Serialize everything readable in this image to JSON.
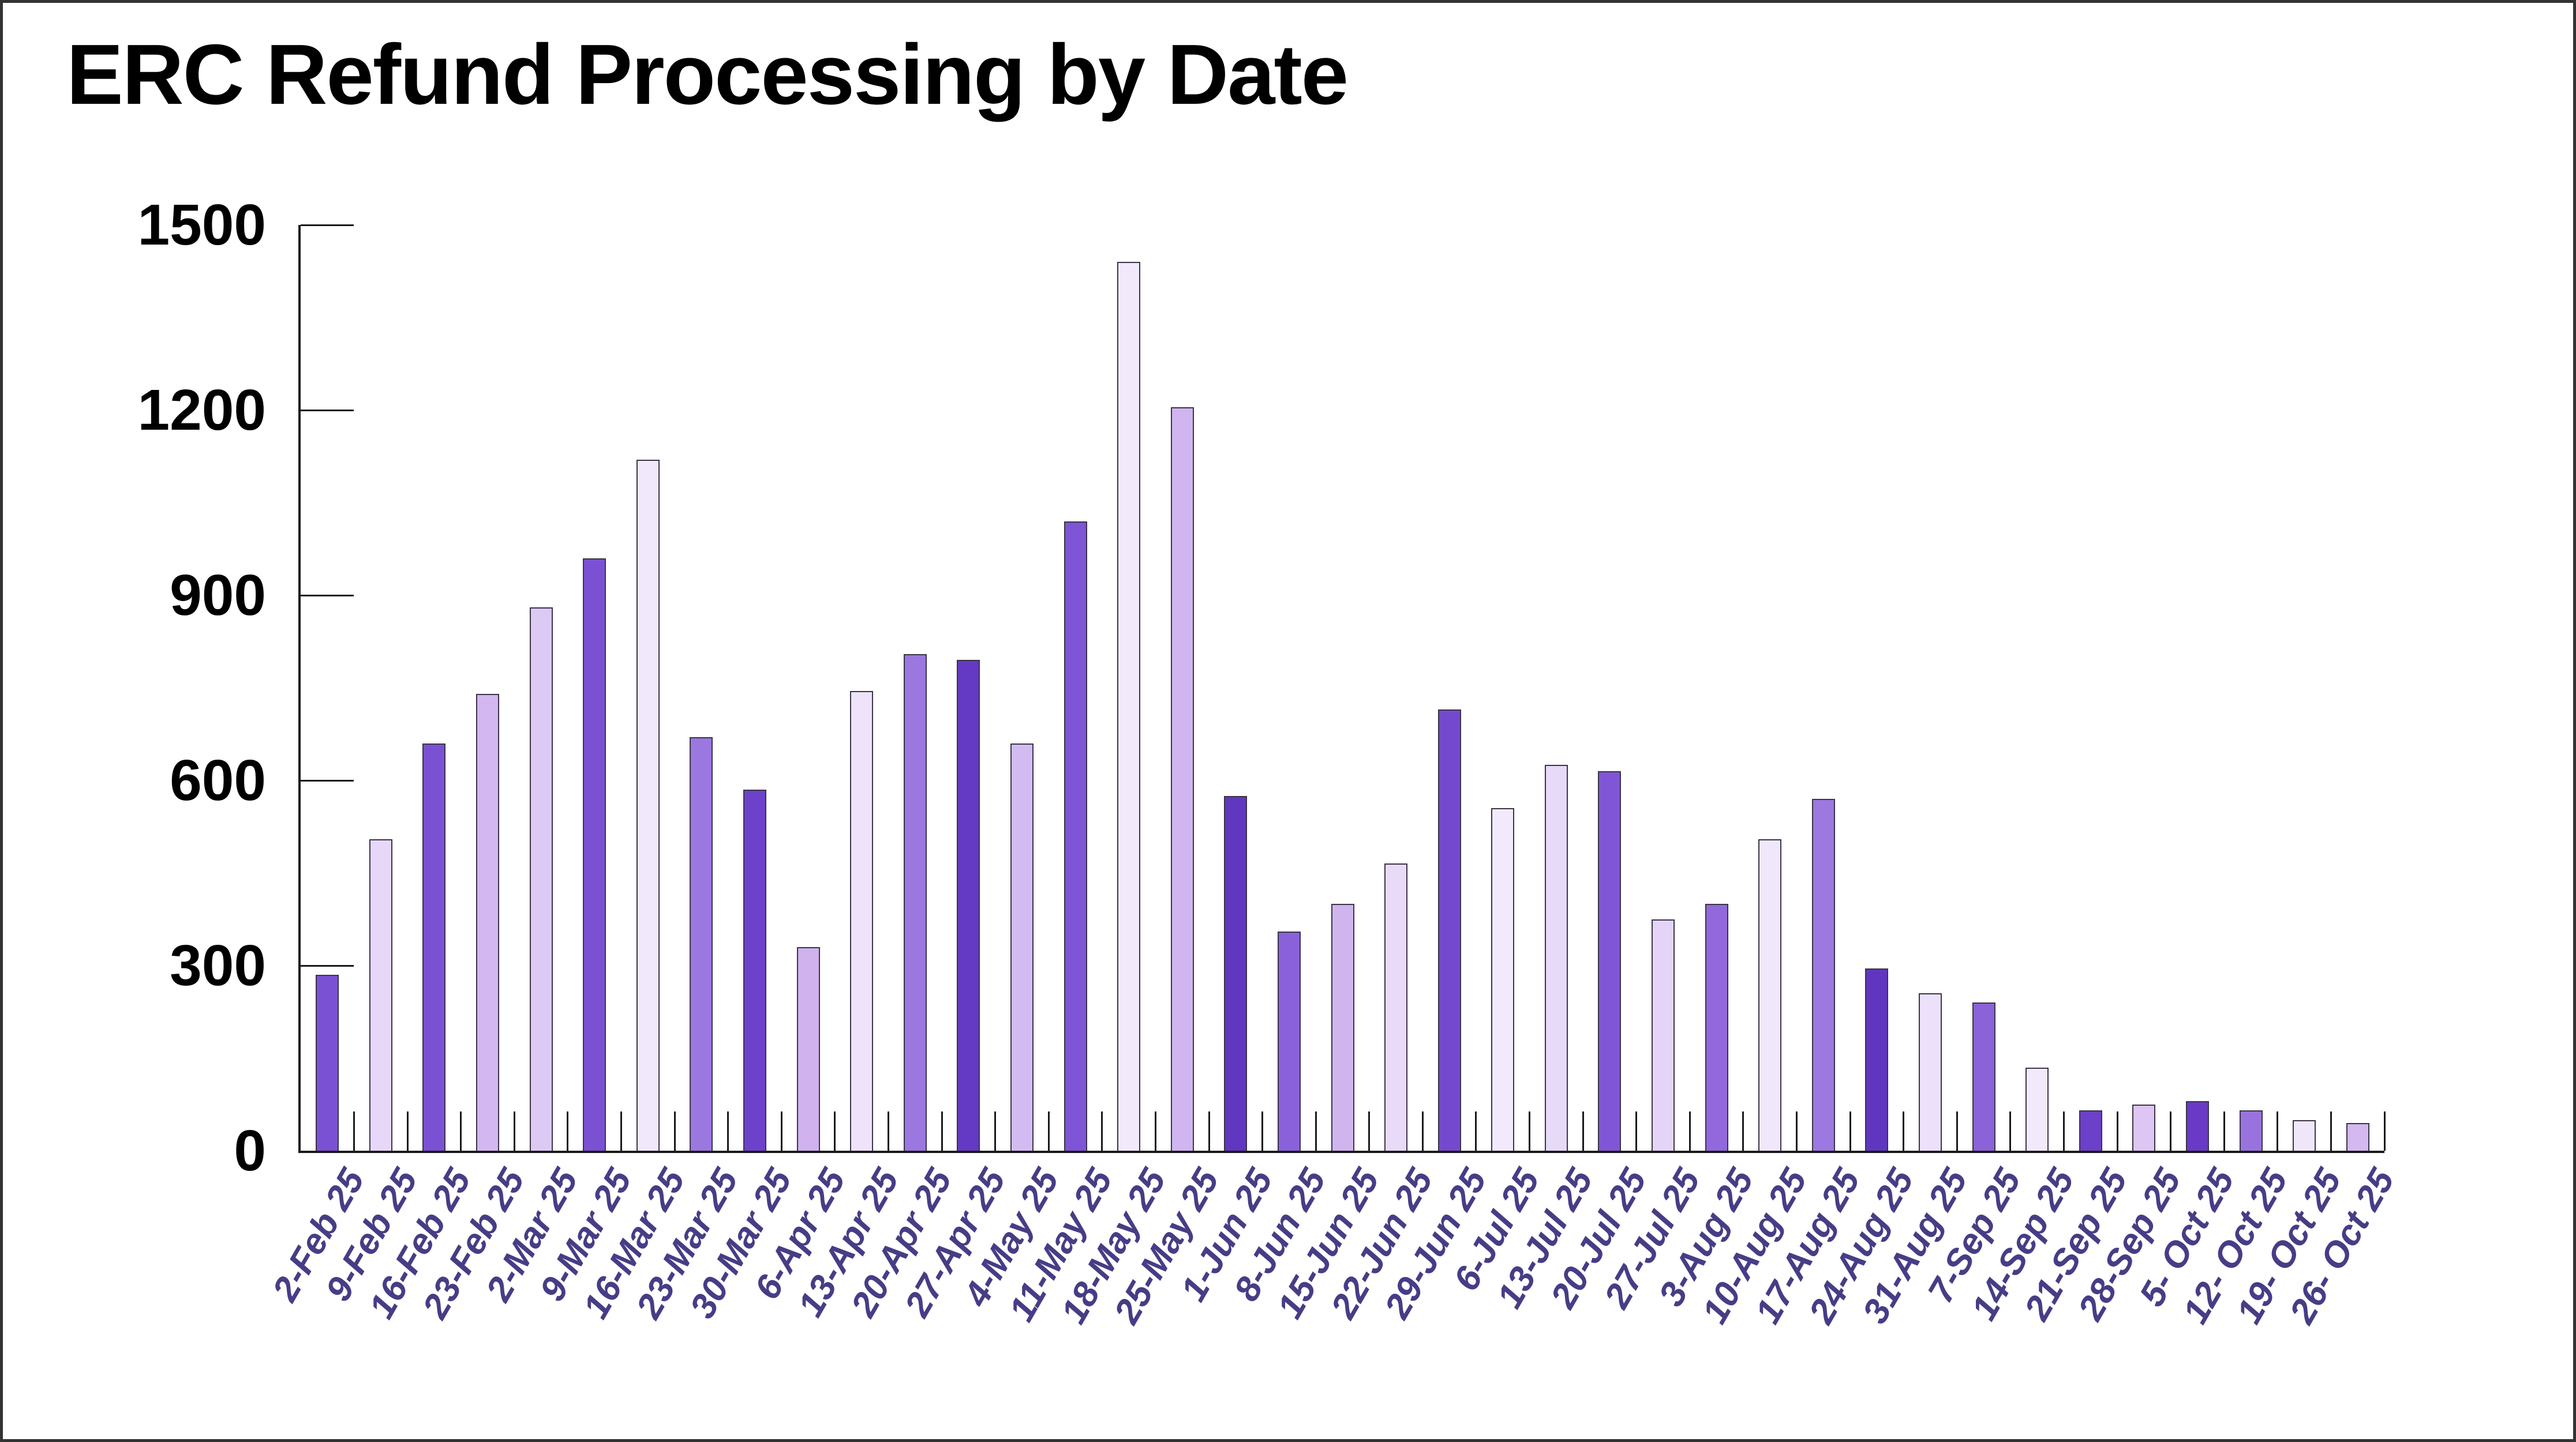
{
  "title": "ERC Refund Processing by Date",
  "chart_data": {
    "type": "bar",
    "title": "ERC Refund Processing by Date",
    "xlabel": "",
    "ylabel": "",
    "ylim": [
      0,
      1500
    ],
    "y_ticks": [
      0,
      300,
      600,
      900,
      1200,
      1500
    ],
    "grid": "none",
    "legend_position": "none",
    "categories": [
      "2-Feb 25",
      "9-Feb 25",
      "16-Feb 25",
      "23-Feb 25",
      "2-Mar 25",
      "9-Mar 25",
      "16-Mar 25",
      "23-Mar 25",
      "30-Mar 25",
      "6-Apr 25",
      "13-Apr 25",
      "20-Apr 25",
      "27-Apr 25",
      "4-May 25",
      "11-May 25",
      "18-May 25",
      "25-May 25",
      "1-Jun 25",
      "8-Jun 25",
      "15-Jun 25",
      "22-Jun 25",
      "29-Jun 25",
      "6-Jul 25",
      "13-Jul 25",
      "20-Jul 25",
      "27-Jul 25",
      "3-Aug 25",
      "10-Aug 25",
      "17-Aug 25",
      "24-Aug 25",
      "31-Aug 25",
      "7-Sep 25",
      "14-Sep 25",
      "21-Sep 25",
      "28-Sep 25",
      "5- Oct 25",
      "12- Oct 25",
      "19- Oct 25",
      "26- Oct 25"
    ],
    "values": [
      285,
      505,
      660,
      740,
      880,
      960,
      1120,
      670,
      585,
      330,
      745,
      805,
      795,
      660,
      1020,
      1440,
      1205,
      575,
      355,
      400,
      465,
      715,
      555,
      625,
      615,
      375,
      400,
      505,
      570,
      295,
      255,
      240,
      135,
      65,
      75,
      80,
      65,
      50,
      45
    ],
    "bar_colors": [
      "#7b51d3",
      "#e7d7f8",
      "#7b51d3",
      "#d3b7f0",
      "#dcc9f4",
      "#7b51d3",
      "#f1e8fb",
      "#9b77e0",
      "#6c42ca",
      "#cfb2ee",
      "#eee3fa",
      "#9b77e0",
      "#6439c3",
      "#d2bbf1",
      "#7d55d5",
      "#f2e9fb",
      "#d0b5f0",
      "#6037c0",
      "#8a61da",
      "#d0b4ee",
      "#e8daf8",
      "#7549ce",
      "#f2eafc",
      "#e7d9f8",
      "#8156d6",
      "#e4d4f7",
      "#9268dc",
      "#f0e7fb",
      "#9c78e0",
      "#6036c0",
      "#ece0fa",
      "#8b62d8",
      "#f2eafb",
      "#6c40c9",
      "#ddc5f4",
      "#6a3ac6",
      "#9873de",
      "#f0e6fa",
      "#d4b8f0"
    ]
  },
  "colors": {
    "background": "#ffffff",
    "frame_border": "#333333",
    "axis": "#1a1a1a",
    "bar_border": "#3a3547",
    "x_label_text": "#463d86",
    "y_label_text": "#000000",
    "title_text": "#000000"
  }
}
